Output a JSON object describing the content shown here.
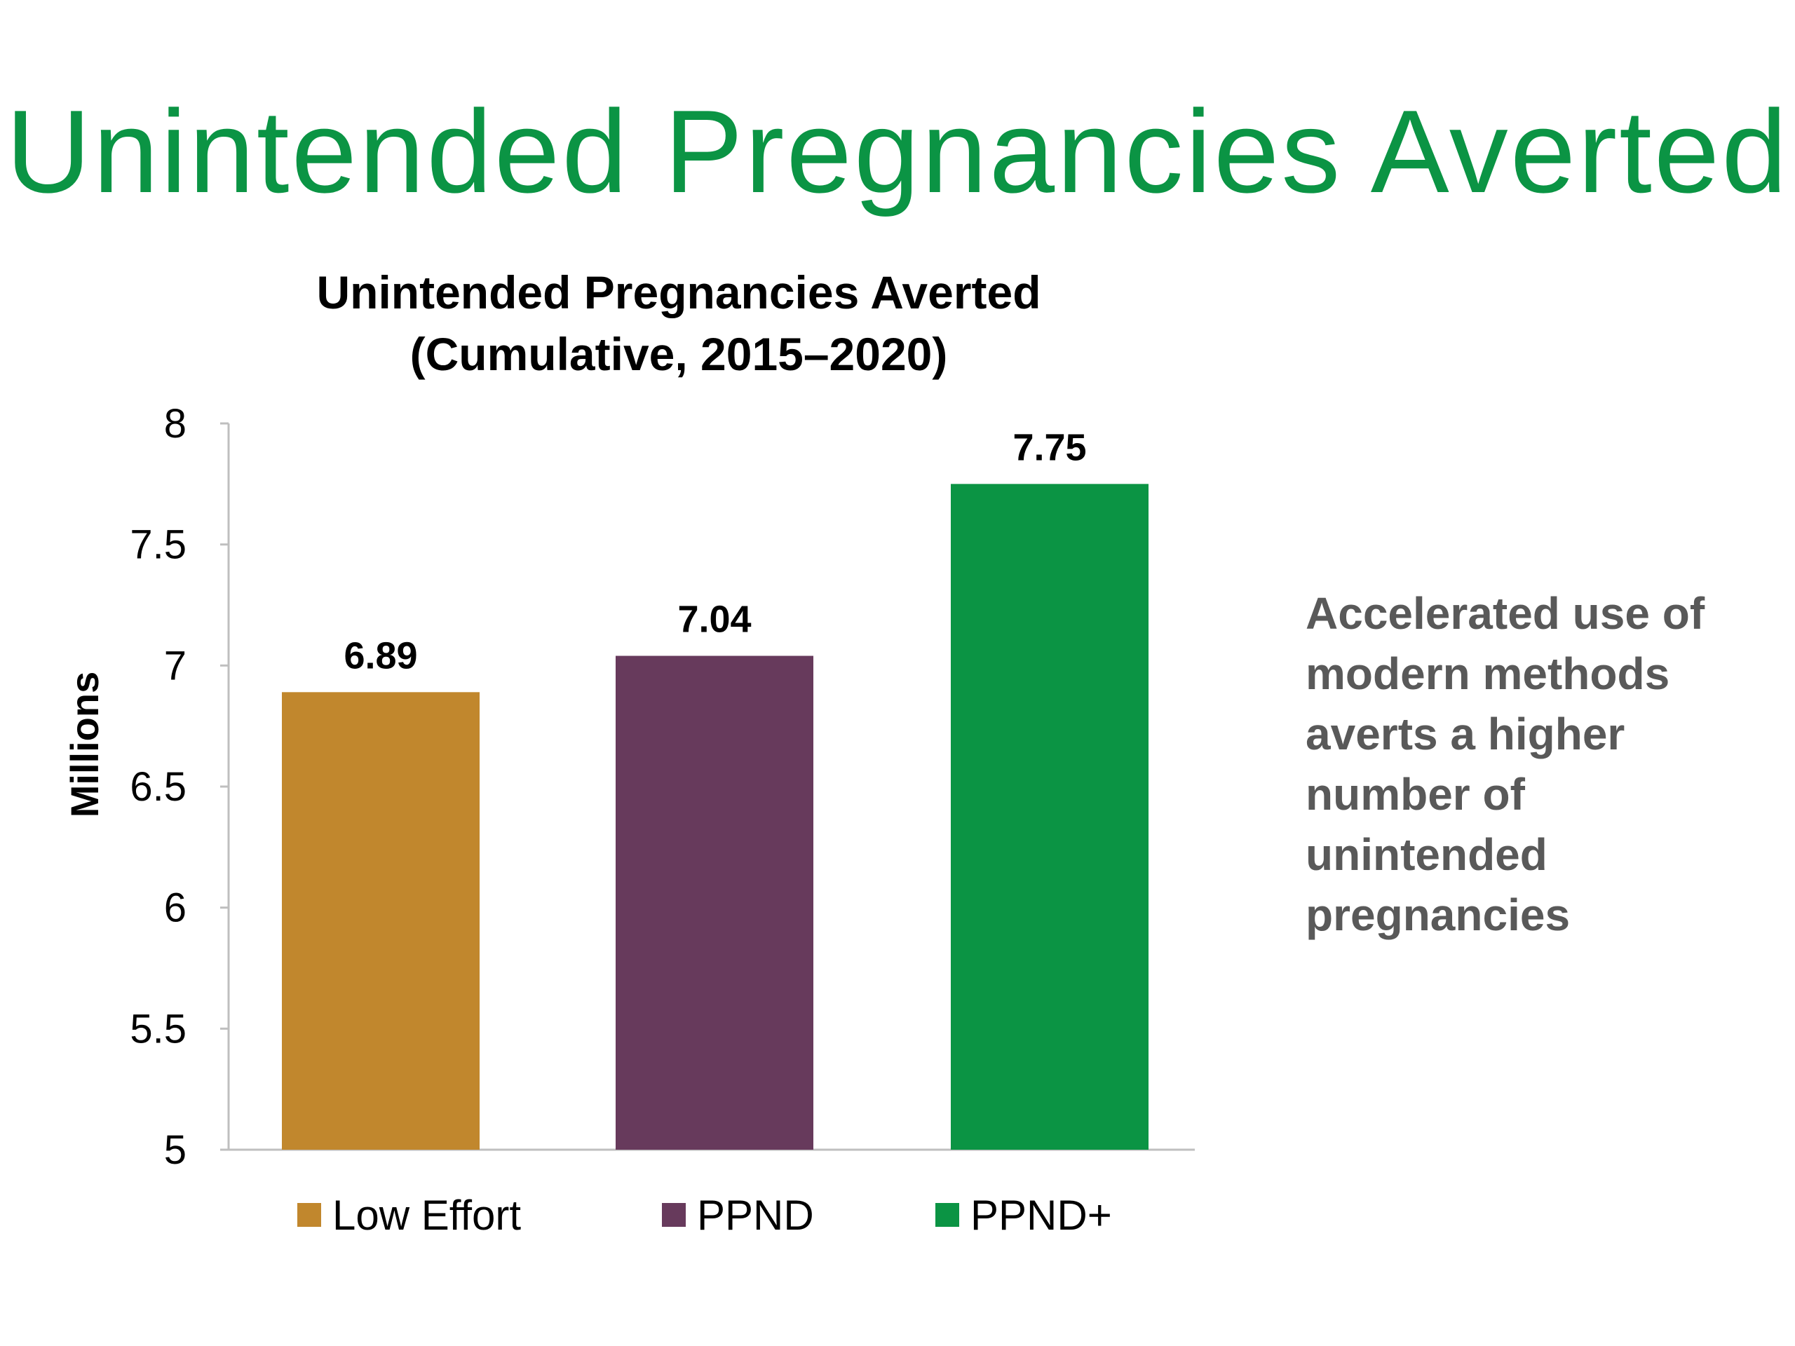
{
  "slide": {
    "title": "Unintended Pregnancies Averted",
    "note": "Accelerated use of modern methods averts a higher number of unintended pregnancies",
    "title_color": "#0b9444",
    "note_color": "#595959"
  },
  "chart_data": {
    "type": "bar",
    "title_line1": "Unintended Pregnancies Averted",
    "title_line2": "(Cumulative, 2015–2020)",
    "ylabel": "Millions",
    "xlabel": "",
    "ylim": [
      5,
      8
    ],
    "yticks": [
      "5",
      "5.5",
      "6",
      "6.5",
      "7",
      "7.5",
      "8"
    ],
    "grid": false,
    "legend_position": "bottom",
    "series": [
      {
        "name": "Low Effort",
        "value": 6.89,
        "label": "6.89",
        "color": "#c1872d"
      },
      {
        "name": "PPND",
        "value": 7.04,
        "label": "7.04",
        "color": "#673a5c"
      },
      {
        "name": "PPND+",
        "value": 7.75,
        "label": "7.75",
        "color": "#0b9444"
      }
    ]
  }
}
